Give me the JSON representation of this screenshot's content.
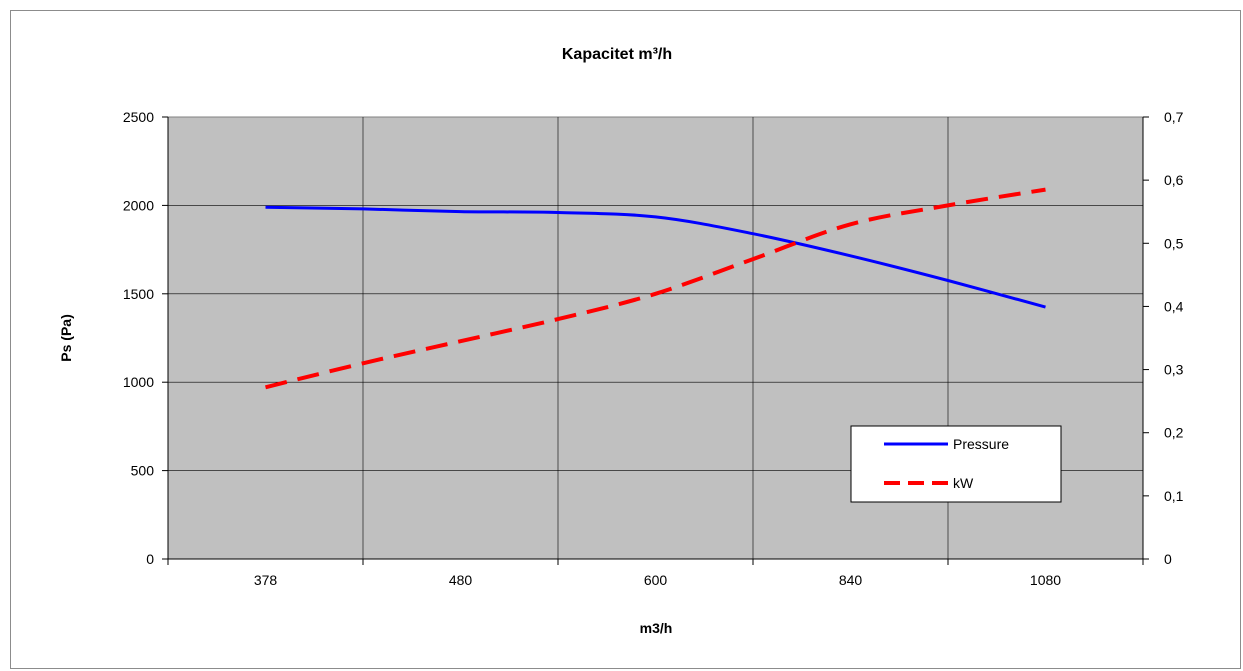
{
  "chart_data": {
    "type": "line",
    "title": "Kapacitet m³/h",
    "xlabel": "m3/h",
    "ylabel": "Ps (Pa)",
    "y2label": "",
    "categories": [
      "378",
      "480",
      "600",
      "840",
      "1080"
    ],
    "y_ticks": [
      "0",
      "500",
      "1000",
      "1500",
      "2000",
      "2500"
    ],
    "y2_ticks": [
      "0",
      "0,1",
      "0,2",
      "0,3",
      "0,4",
      "0,5",
      "0,6",
      "0,7"
    ],
    "ylim": [
      0,
      2500
    ],
    "y2lim": [
      0,
      0.7
    ],
    "grid": true,
    "legend_position": "bottom-right",
    "series": [
      {
        "name": "Pressure",
        "axis": "left",
        "color": "#0000ff",
        "dash": "solid",
        "points": [
          {
            "x": 0,
            "y": 1990
          },
          {
            "x": 0.5,
            "y": 1980
          },
          {
            "x": 1,
            "y": 1965
          },
          {
            "x": 1.5,
            "y": 1960
          },
          {
            "x": 2,
            "y": 1935
          },
          {
            "x": 2.5,
            "y": 1840
          },
          {
            "x": 3,
            "y": 1715
          },
          {
            "x": 3.5,
            "y": 1575
          },
          {
            "x": 4,
            "y": 1425
          }
        ]
      },
      {
        "name": "kW",
        "axis": "right",
        "color": "#ff0000",
        "dash": "dashed",
        "points": [
          {
            "x": 0,
            "y": 0.272
          },
          {
            "x": 0.5,
            "y": 0.31
          },
          {
            "x": 1,
            "y": 0.345
          },
          {
            "x": 1.5,
            "y": 0.38
          },
          {
            "x": 2,
            "y": 0.42
          },
          {
            "x": 2.5,
            "y": 0.475
          },
          {
            "x": 3,
            "y": 0.53
          },
          {
            "x": 3.5,
            "y": 0.56
          },
          {
            "x": 4,
            "y": 0.585
          }
        ]
      }
    ]
  }
}
